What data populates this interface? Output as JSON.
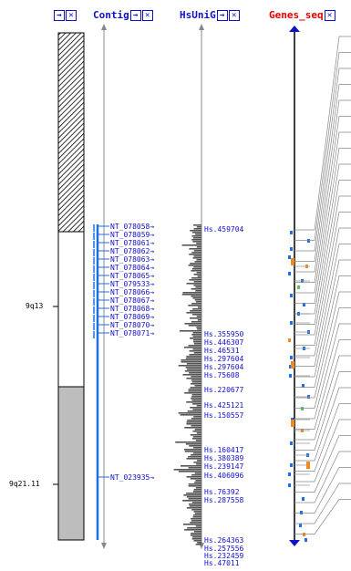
{
  "headers": [
    {
      "id": "ideogram",
      "label": ""
    },
    {
      "id": "contig",
      "label": "Contig"
    },
    {
      "id": "hsunig",
      "label": "HsUniG"
    },
    {
      "id": "genes",
      "label": "Genes_seq"
    }
  ],
  "bands": [
    "9q13",
    "9q21.11"
  ],
  "contigs": [
    "NT_078058",
    "NT_078059",
    "NT_078061",
    "NT_078062",
    "NT_078063",
    "NT_078064",
    "NT_078065",
    "NT_079533",
    "NT_078066",
    "NT_078067",
    "NT_078068",
    "NT_078069",
    "NT_078070",
    "NT_078071",
    "NT_023935"
  ],
  "unigenes": [
    "Hs.459704",
    "Hs.355950",
    "Hs.446307",
    "Hs.46531",
    "Hs.297604",
    "Hs.297604",
    "Hs.75608",
    "Hs.220677",
    "Hs.425121",
    "Hs.150557",
    "Hs.160417",
    "Hs.380389",
    "Hs.239147",
    "Hs.406096",
    "Hs.76392",
    "Hs.287558",
    "Hs.264363",
    "Hs.257556",
    "Hs.232459",
    "Hs.47011"
  ],
  "colors": {
    "link": "#1010c8",
    "title_red": "#e00000",
    "contig_bar": "#1e6ee6",
    "ideogram_fill": "#bdbdbd",
    "gene_orange": "#f08a20",
    "gene_green": "#5cc25c"
  }
}
